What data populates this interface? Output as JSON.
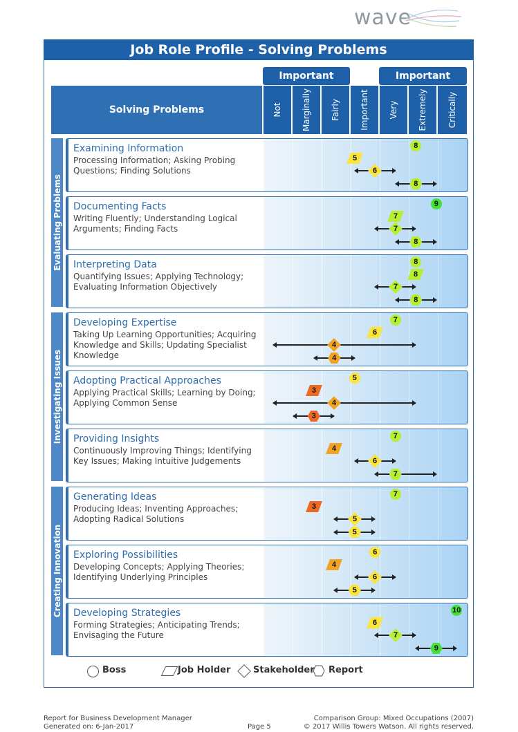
{
  "brand": {
    "logo_text": "wave"
  },
  "title": "Job Role Profile - Solving Problems",
  "important_labels": [
    "Important",
    "Important"
  ],
  "header_left": "Solving Problems",
  "columns": [
    "Not",
    "Marginally",
    "Fairly",
    "Important",
    "Very",
    "Extremely",
    "Critically"
  ],
  "sections": [
    "Evaluating Problems",
    "Investigating Issues",
    "Creating Innovation"
  ],
  "rows": [
    {
      "title": "Examining Information",
      "desc": "Processing Information; Asking Probing Questions; Finding Solutions",
      "boss": 8,
      "job_holder": 5,
      "stakeholder": 6,
      "report": 8
    },
    {
      "title": "Documenting Facts",
      "desc": "Writing Fluently; Understanding Logical Arguments; Finding Facts",
      "boss": 9,
      "job_holder": 7,
      "stakeholder": 7,
      "report": 8
    },
    {
      "title": "Interpreting Data",
      "desc": "Quantifying Issues; Applying Technology; Evaluating Information Objectively",
      "boss": 8,
      "job_holder": 8,
      "stakeholder": 7,
      "report": 8
    },
    {
      "title": "Developing Expertise",
      "desc": "Taking Up Learning Opportunities; Acquiring Knowledge and Skills; Updating Specialist Knowledge",
      "boss": 7,
      "job_holder": 6,
      "stakeholder": 4,
      "report": 4
    },
    {
      "title": "Adopting Practical Approaches",
      "desc": "Applying Practical Skills; Learning by Doing; Applying Common Sense",
      "boss": 5,
      "job_holder": 3,
      "stakeholder": 4,
      "report": 3
    },
    {
      "title": "Providing Insights",
      "desc": "Continuously Improving Things; Identifying Key Issues; Making Intuitive Judgements",
      "boss": 7,
      "job_holder": 4,
      "stakeholder": 6,
      "report": 7
    },
    {
      "title": "Generating Ideas",
      "desc": "Producing Ideas; Inventing Approaches; Adopting Radical Solutions",
      "boss": 7,
      "job_holder": 3,
      "stakeholder": 5,
      "report": 5
    },
    {
      "title": "Exploring Possibilities",
      "desc": "Developing Concepts; Applying Theories; Identifying Underlying Principles",
      "boss": 6,
      "job_holder": 4,
      "stakeholder": 6,
      "report": 5
    },
    {
      "title": "Developing Strategies",
      "desc": "Forming Strategies; Anticipating Trends; Envisaging the Future",
      "boss": 10,
      "job_holder": 6,
      "stakeholder": 7,
      "report": 9
    }
  ],
  "legend": [
    "Boss",
    "Job Holder",
    "Stakeholder",
    "Report"
  ],
  "footer": {
    "left_line1": "Report for Business Development Manager",
    "left_line2": "Generated on: 6-Jan-2017",
    "center": "Page 5",
    "right_line1": "Comparison Group: Mixed Occupations (2007)",
    "right_line2": "© 2017 Willis Towers Watson. All rights reserved."
  },
  "colors": {
    "primary": "#1e61a8",
    "green": "#44e03c",
    "lime": "#b6ef2f",
    "yellow": "#fbe53b",
    "orange": "#f1a423",
    "red": "#ee6a22"
  }
}
